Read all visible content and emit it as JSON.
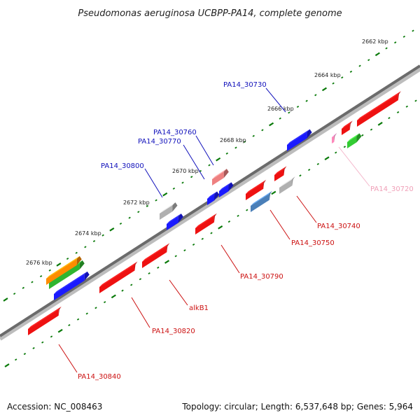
{
  "title": "Pseudomonas aeruginosa UCBPP-PA14, complete genome",
  "footer": {
    "accession": "Accession: NC_008463",
    "summary": "Topology: circular; Length: 6,537,648 bp; Genes: 5,964"
  },
  "colors": {
    "backbone": "#666666",
    "ticks": "#0a7a0a",
    "forward_label": "#1111bb",
    "reverse_label": "#cc1111",
    "faded_label": "#f0a0b8"
  },
  "scale_labels": [
    "2662 kbp",
    "2664 kbp",
    "2666 kbp",
    "2668 kbp",
    "2670 kbp",
    "2672 kbp",
    "2674 kbp",
    "2676 kbp"
  ],
  "gene_labels": [
    {
      "text": "PA14_30730",
      "strand": "forward"
    },
    {
      "text": "PA14_30760",
      "strand": "forward"
    },
    {
      "text": "PA14_30770",
      "strand": "forward"
    },
    {
      "text": "PA14_30800",
      "strand": "forward"
    },
    {
      "text": "PA14_30720",
      "strand": "faded"
    },
    {
      "text": "PA14_30740",
      "strand": "reverse"
    },
    {
      "text": "PA14_30750",
      "strand": "reverse"
    },
    {
      "text": "PA14_30790",
      "strand": "reverse"
    },
    {
      "text": "alkB1",
      "strand": "reverse"
    },
    {
      "text": "PA14_30820",
      "strand": "reverse"
    },
    {
      "text": "PA14_30840",
      "strand": "reverse"
    }
  ]
}
